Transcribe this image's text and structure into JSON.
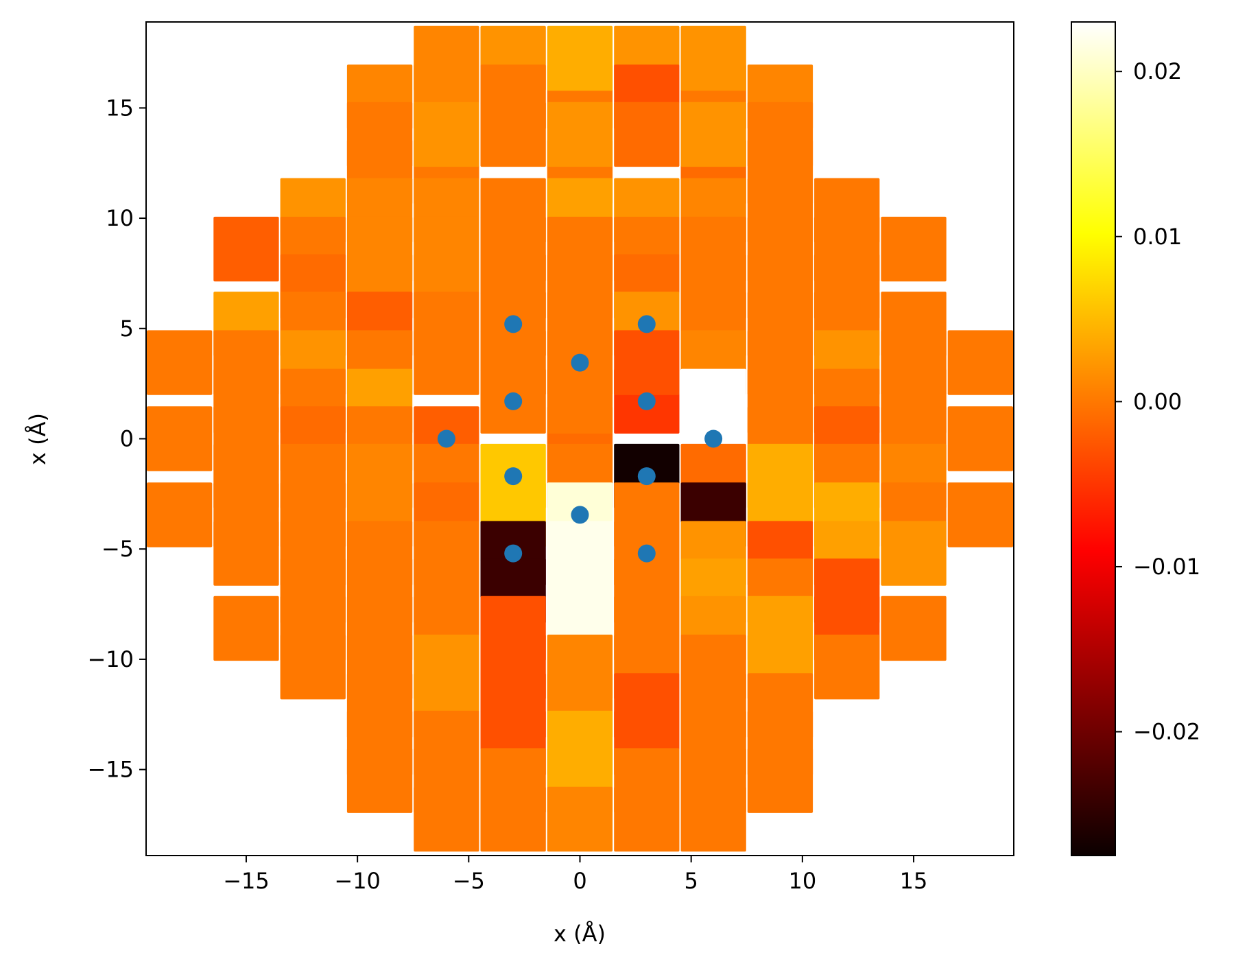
{
  "chart_data": {
    "type": "heatmap",
    "xlabel": "x (Å)",
    "ylabel": "x (Å)",
    "xlim": [
      -19.5,
      19.5
    ],
    "ylim": [
      -18.9,
      18.9
    ],
    "x_ticks": [
      -15,
      -10,
      -5,
      0,
      5,
      10,
      15
    ],
    "y_ticks": [
      -15,
      -10,
      -5,
      0,
      5,
      10,
      15
    ],
    "x_tick_labels": [
      "−15",
      "−10",
      "−5",
      "0",
      "5",
      "10",
      "15"
    ],
    "y_tick_labels": [
      "−15",
      "−10",
      "−5",
      "0",
      "5",
      "10",
      "15"
    ],
    "tile_width": 3.0,
    "tile_height": 3.0,
    "colorbar": {
      "colormap": "hot",
      "range": [
        -0.0275,
        0.023
      ],
      "ticks": [
        -0.02,
        -0.01,
        0.0,
        0.01,
        0.02
      ],
      "tick_labels": [
        "−0.02",
        "−0.01",
        "0.00",
        "0.01",
        "0.02"
      ]
    },
    "cells": [
      {
        "x": -3.0,
        "y": 17.25,
        "v": 0.002
      },
      {
        "x": 3.0,
        "y": 17.25,
        "v": 0.002
      },
      {
        "x": -6.0,
        "y": 15.5,
        "v": 0.001
      },
      {
        "x": 0.0,
        "y": 15.5,
        "v": 0.0
      },
      {
        "x": 6.0,
        "y": 15.5,
        "v": 0.0
      },
      {
        "x": -9.0,
        "y": 15.5,
        "v": 0.001
      },
      {
        "x": 9.0,
        "y": 15.5,
        "v": 0.001
      },
      {
        "x": -3.0,
        "y": 15.5,
        "v": 0.0
      },
      {
        "x": 3.0,
        "y": 15.5,
        "v": -0.003
      },
      {
        "x": -6.0,
        "y": 17.25,
        "v": 0.001
      },
      {
        "x": 0.0,
        "y": 17.25,
        "v": 0.004
      },
      {
        "x": 6.0,
        "y": 17.25,
        "v": 0.002
      },
      {
        "x": -3.0,
        "y": 13.8,
        "v": 0.0
      },
      {
        "x": 3.0,
        "y": 13.8,
        "v": -0.001
      },
      {
        "x": -6.0,
        "y": 12.1,
        "v": 0.0
      },
      {
        "x": 0.0,
        "y": 12.1,
        "v": 0.0
      },
      {
        "x": 6.0,
        "y": 12.1,
        "v": -0.001
      },
      {
        "x": -9.0,
        "y": 12.1,
        "v": 0.0
      },
      {
        "x": 9.0,
        "y": 12.1,
        "v": 0.0
      },
      {
        "x": -12.0,
        "y": 10.35,
        "v": 0.002
      },
      {
        "x": 12.0,
        "y": 10.35,
        "v": 0.0
      },
      {
        "x": -6.0,
        "y": 13.8,
        "v": 0.002
      },
      {
        "x": 0.0,
        "y": 13.8,
        "v": 0.002
      },
      {
        "x": 6.0,
        "y": 13.8,
        "v": 0.002
      },
      {
        "x": -9.0,
        "y": 13.8,
        "v": 0.0
      },
      {
        "x": 9.0,
        "y": 13.8,
        "v": 0.0
      },
      {
        "x": -3.0,
        "y": 10.35,
        "v": 0.0
      },
      {
        "x": 3.0,
        "y": 10.35,
        "v": 0.002
      },
      {
        "x": -6.0,
        "y": 10.35,
        "v": 0.001
      },
      {
        "x": 0.0,
        "y": 10.35,
        "v": 0.003
      },
      {
        "x": 6.0,
        "y": 10.35,
        "v": 0.001
      },
      {
        "x": -9.0,
        "y": 10.35,
        "v": 0.001
      },
      {
        "x": 9.0,
        "y": 10.35,
        "v": 0.0
      },
      {
        "x": -15.0,
        "y": 8.6,
        "v": -0.002
      },
      {
        "x": 15.0,
        "y": 8.6,
        "v": 0.0
      },
      {
        "x": -12.0,
        "y": 8.6,
        "v": 0.0
      },
      {
        "x": 12.0,
        "y": 8.6,
        "v": 0.0
      },
      {
        "x": -3.0,
        "y": 8.6,
        "v": 0.0
      },
      {
        "x": 3.0,
        "y": 8.6,
        "v": 0.0
      },
      {
        "x": -6.0,
        "y": 8.6,
        "v": 0.001
      },
      {
        "x": 0.0,
        "y": 8.6,
        "v": 0.0
      },
      {
        "x": 6.0,
        "y": 8.6,
        "v": 0.0
      },
      {
        "x": -9.0,
        "y": 8.6,
        "v": 0.001
      },
      {
        "x": 9.0,
        "y": 8.6,
        "v": 0.0
      },
      {
        "x": -12.0,
        "y": 6.9,
        "v": -0.001
      },
      {
        "x": 12.0,
        "y": 6.9,
        "v": 0.0
      },
      {
        "x": -3.0,
        "y": 6.9,
        "v": 0.0
      },
      {
        "x": 3.0,
        "y": 6.9,
        "v": -0.001
      },
      {
        "x": -6.0,
        "y": 6.9,
        "v": 0.001
      },
      {
        "x": 0.0,
        "y": 6.9,
        "v": 0.0
      },
      {
        "x": 6.0,
        "y": 6.9,
        "v": 0.0
      },
      {
        "x": -9.0,
        "y": 6.9,
        "v": 0.001
      },
      {
        "x": 9.0,
        "y": 6.9,
        "v": 0.0
      },
      {
        "x": -15.0,
        "y": 5.2,
        "v": 0.003
      },
      {
        "x": 15.0,
        "y": 5.2,
        "v": 0.0
      },
      {
        "x": -12.0,
        "y": 5.2,
        "v": 0.0
      },
      {
        "x": 12.0,
        "y": 5.2,
        "v": 0.0
      },
      {
        "x": -9.0,
        "y": 5.2,
        "v": -0.002
      },
      {
        "x": 9.0,
        "y": 5.2,
        "v": 0.0
      },
      {
        "x": -6.0,
        "y": 5.2,
        "v": 0.0
      },
      {
        "x": 0.0,
        "y": 5.2,
        "v": 0.0
      },
      {
        "x": 6.0,
        "y": 5.2,
        "v": 0.0
      },
      {
        "x": -3.0,
        "y": 5.2,
        "v": 0.0
      },
      {
        "x": 3.0,
        "y": 5.2,
        "v": 0.002
      },
      {
        "x": -18.0,
        "y": 3.45,
        "v": 0.0
      },
      {
        "x": 18.0,
        "y": 3.45,
        "v": 0.0
      },
      {
        "x": -15.0,
        "y": 3.45,
        "v": 0.0
      },
      {
        "x": 15.0,
        "y": 3.45,
        "v": 0.0
      },
      {
        "x": -12.0,
        "y": 3.45,
        "v": 0.002
      },
      {
        "x": 12.0,
        "y": 3.45,
        "v": 0.002
      },
      {
        "x": -9.0,
        "y": 3.45,
        "v": 0.0
      },
      {
        "x": 9.0,
        "y": 3.45,
        "v": 0.0
      },
      {
        "x": -6.0,
        "y": 3.45,
        "v": 0.0
      },
      {
        "x": 0.0,
        "y": 3.45,
        "v": 0.0
      },
      {
        "x": 6.0,
        "y": 3.45,
        "v": 0.001
      },
      {
        "x": -3.0,
        "y": 1.7,
        "v": 0.0
      },
      {
        "x": 3.0,
        "y": 1.7,
        "v": -0.005
      },
      {
        "x": -9.0,
        "y": 1.7,
        "v": 0.003
      },
      {
        "x": 9.0,
        "y": 1.7,
        "v": 0.0
      },
      {
        "x": -12.0,
        "y": 1.7,
        "v": 0.0
      },
      {
        "x": 12.0,
        "y": 1.7,
        "v": 0.0
      },
      {
        "x": -15.0,
        "y": 1.7,
        "v": 0.0
      },
      {
        "x": 15.0,
        "y": 1.7,
        "v": 0.0
      },
      {
        "x": -3.0,
        "y": 3.45,
        "v": 0.0
      },
      {
        "x": 3.0,
        "y": 3.45,
        "v": -0.003
      },
      {
        "x": -18.0,
        "y": 0.0,
        "v": 0.0
      },
      {
        "x": 18.0,
        "y": 0.0,
        "v": 0.0
      },
      {
        "x": -15.0,
        "y": 0.0,
        "v": 0.0
      },
      {
        "x": 15.0,
        "y": 0.0,
        "v": 0.0
      },
      {
        "x": -12.0,
        "y": 0.0,
        "v": -0.001
      },
      {
        "x": 12.0,
        "y": 0.0,
        "v": -0.002
      },
      {
        "x": -9.0,
        "y": 0.0,
        "v": 0.0
      },
      {
        "x": 9.0,
        "y": 0.0,
        "v": 0.0
      },
      {
        "x": -6.0,
        "y": 0.0,
        "v": -0.002
      },
      {
        "x": 0.0,
        "y": 0.0,
        "v": -0.001
      },
      {
        "x": 6.0,
        "y": 0.0,
        "v": 0.023
      },
      {
        "x": 0.0,
        "y": 1.7,
        "v": 0.0
      },
      {
        "x": 6.0,
        "y": 1.7,
        "v": 0.023
      },
      {
        "x": -3.0,
        "y": -1.7,
        "v": 0.006
      },
      {
        "x": 3.0,
        "y": -1.7,
        "v": -0.027
      },
      {
        "x": -6.0,
        "y": -1.7,
        "v": 0.0
      },
      {
        "x": 0.0,
        "y": -1.7,
        "v": 0.0
      },
      {
        "x": 6.0,
        "y": -1.7,
        "v": -0.001
      },
      {
        "x": -9.0,
        "y": -1.7,
        "v": 0.001
      },
      {
        "x": 9.0,
        "y": -1.7,
        "v": 0.004
      },
      {
        "x": -12.0,
        "y": -1.7,
        "v": 0.0
      },
      {
        "x": 12.0,
        "y": -1.7,
        "v": 0.0
      },
      {
        "x": -15.0,
        "y": -1.7,
        "v": 0.0
      },
      {
        "x": 15.0,
        "y": -1.7,
        "v": 0.001
      },
      {
        "x": -18.0,
        "y": -3.45,
        "v": 0.0
      },
      {
        "x": 18.0,
        "y": -3.45,
        "v": 0.0
      },
      {
        "x": -15.0,
        "y": -3.45,
        "v": 0.0
      },
      {
        "x": 15.0,
        "y": -3.45,
        "v": 0.0
      },
      {
        "x": -12.0,
        "y": -3.45,
        "v": 0.0
      },
      {
        "x": 12.0,
        "y": -3.45,
        "v": 0.004
      },
      {
        "x": -9.0,
        "y": -3.45,
        "v": 0.001
      },
      {
        "x": 9.0,
        "y": -3.45,
        "v": 0.004
      },
      {
        "x": -6.0,
        "y": -3.45,
        "v": -0.001
      },
      {
        "x": 0.0,
        "y": -3.45,
        "v": 0.021
      },
      {
        "x": 6.0,
        "y": -3.45,
        "v": -0.024
      },
      {
        "x": -3.0,
        "y": -3.45,
        "v": 0.006
      },
      {
        "x": 3.0,
        "y": -3.45,
        "v": 0.0
      },
      {
        "x": -3.0,
        "y": -5.2,
        "v": -0.024
      },
      {
        "x": 3.0,
        "y": -5.2,
        "v": 0.0
      },
      {
        "x": -6.0,
        "y": -5.2,
        "v": 0.0
      },
      {
        "x": 0.0,
        "y": -5.2,
        "v": 0.022
      },
      {
        "x": 6.0,
        "y": -5.2,
        "v": 0.002
      },
      {
        "x": -9.0,
        "y": -5.2,
        "v": 0.0
      },
      {
        "x": 9.0,
        "y": -5.2,
        "v": -0.003
      },
      {
        "x": -12.0,
        "y": -5.2,
        "v": 0.0
      },
      {
        "x": 12.0,
        "y": -5.2,
        "v": 0.003
      },
      {
        "x": -15.0,
        "y": -5.2,
        "v": 0.0
      },
      {
        "x": 15.0,
        "y": -5.2,
        "v": 0.002
      },
      {
        "x": -15.0,
        "y": -8.6,
        "v": 0.0
      },
      {
        "x": 15.0,
        "y": -8.6,
        "v": 0.0
      },
      {
        "x": -12.0,
        "y": -6.9,
        "v": 0.0
      },
      {
        "x": 12.0,
        "y": -6.9,
        "v": -0.003
      },
      {
        "x": -9.0,
        "y": -6.9,
        "v": 0.0
      },
      {
        "x": 9.0,
        "y": -6.9,
        "v": 0.0
      },
      {
        "x": -6.0,
        "y": -6.9,
        "v": 0.0
      },
      {
        "x": 0.0,
        "y": -6.9,
        "v": 0.022
      },
      {
        "x": 6.0,
        "y": -6.9,
        "v": 0.003
      },
      {
        "x": -3.0,
        "y": -6.9,
        "v": -0.024
      },
      {
        "x": 3.0,
        "y": -6.9,
        "v": 0.0
      },
      {
        "x": -12.0,
        "y": -8.6,
        "v": 0.0
      },
      {
        "x": 12.0,
        "y": -8.6,
        "v": -0.003
      },
      {
        "x": -9.0,
        "y": -8.6,
        "v": 0.0
      },
      {
        "x": 9.0,
        "y": -8.6,
        "v": 0.003
      },
      {
        "x": -6.0,
        "y": -8.6,
        "v": 0.0
      },
      {
        "x": 0.0,
        "y": -8.6,
        "v": 0.022
      },
      {
        "x": 6.0,
        "y": -8.6,
        "v": 0.002
      },
      {
        "x": -3.0,
        "y": -8.6,
        "v": -0.003
      },
      {
        "x": 3.0,
        "y": -8.6,
        "v": 0.0
      },
      {
        "x": -12.0,
        "y": -10.35,
        "v": 0.0
      },
      {
        "x": 12.0,
        "y": -10.35,
        "v": 0.0
      },
      {
        "x": -9.0,
        "y": -10.35,
        "v": 0.0
      },
      {
        "x": 9.0,
        "y": -10.35,
        "v": 0.003
      },
      {
        "x": -6.0,
        "y": -10.35,
        "v": 0.002
      },
      {
        "x": 0.0,
        "y": -10.35,
        "v": 0.001
      },
      {
        "x": 6.0,
        "y": -10.35,
        "v": 0.0
      },
      {
        "x": -3.0,
        "y": -10.35,
        "v": -0.003
      },
      {
        "x": 3.0,
        "y": -10.35,
        "v": 0.0
      },
      {
        "x": -9.0,
        "y": -12.1,
        "v": 0.0
      },
      {
        "x": 9.0,
        "y": -12.1,
        "v": 0.0
      },
      {
        "x": -6.0,
        "y": -12.1,
        "v": 0.002
      },
      {
        "x": 0.0,
        "y": -12.1,
        "v": 0.001
      },
      {
        "x": 6.0,
        "y": -12.1,
        "v": 0.0
      },
      {
        "x": -3.0,
        "y": -12.1,
        "v": -0.003
      },
      {
        "x": 3.0,
        "y": -12.1,
        "v": -0.003
      },
      {
        "x": -9.0,
        "y": -13.8,
        "v": 0.0
      },
      {
        "x": 9.0,
        "y": -13.8,
        "v": 0.0
      },
      {
        "x": -6.0,
        "y": -13.8,
        "v": 0.0
      },
      {
        "x": 0.0,
        "y": -13.8,
        "v": 0.004
      },
      {
        "x": 6.0,
        "y": -13.8,
        "v": 0.0
      },
      {
        "x": -3.0,
        "y": -13.8,
        "v": -0.003
      },
      {
        "x": 3.0,
        "y": -13.8,
        "v": -0.003
      },
      {
        "x": -9.0,
        "y": -15.5,
        "v": 0.0
      },
      {
        "x": 9.0,
        "y": -15.5,
        "v": 0.0
      },
      {
        "x": -6.0,
        "y": -15.5,
        "v": 0.0
      },
      {
        "x": 0.0,
        "y": -15.5,
        "v": 0.004
      },
      {
        "x": 6.0,
        "y": -15.5,
        "v": 0.0
      },
      {
        "x": -3.0,
        "y": -15.5,
        "v": 0.0
      },
      {
        "x": 3.0,
        "y": -15.5,
        "v": 0.0
      },
      {
        "x": -6.0,
        "y": -17.25,
        "v": 0.0
      },
      {
        "x": 0.0,
        "y": -17.25,
        "v": 0.001
      },
      {
        "x": 6.0,
        "y": -17.25,
        "v": 0.0
      },
      {
        "x": -3.0,
        "y": -17.25,
        "v": 0.0
      },
      {
        "x": 3.0,
        "y": -17.25,
        "v": 0.0
      }
    ],
    "points": [
      {
        "x": -3.0,
        "y": 5.2
      },
      {
        "x": 3.0,
        "y": 5.2
      },
      {
        "x": 0.0,
        "y": 3.45
      },
      {
        "x": -3.0,
        "y": 1.7
      },
      {
        "x": 3.0,
        "y": 1.7
      },
      {
        "x": -6.0,
        "y": 0.0
      },
      {
        "x": 6.0,
        "y": 0.0
      },
      {
        "x": -3.0,
        "y": -1.7
      },
      {
        "x": 3.0,
        "y": -1.7
      },
      {
        "x": 0.0,
        "y": -3.45
      },
      {
        "x": -3.0,
        "y": -5.2
      },
      {
        "x": 3.0,
        "y": -5.2
      }
    ],
    "point_color": "#1f77b4"
  }
}
